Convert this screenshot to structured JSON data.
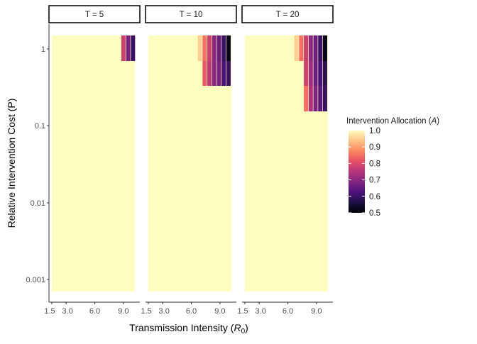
{
  "chart_data": {
    "type": "heatmap",
    "facets": [
      "T = 5",
      "T = 10",
      "T = 20"
    ],
    "xlabel": "Transmission Intensity",
    "xlabel_symbol": "R",
    "xlabel_subscript": "0",
    "ylabel": "Relative Intervention Cost (P)",
    "x_range": [
      1.5,
      10.2
    ],
    "x_ticks": [
      1.5,
      3.0,
      6.0,
      9.0
    ],
    "x_tick_labels": [
      "1.5",
      "3.0",
      "6.0",
      "9.0"
    ],
    "y_scale": "log",
    "y_range": [
      0.001,
      1
    ],
    "y_ticks": [
      1,
      0.1,
      0.01,
      0.001
    ],
    "y_tick_labels": [
      "1",
      "0.1",
      "0.01",
      "0.001"
    ],
    "legend": {
      "title": "Intervention Allocation",
      "title_symbol": "A",
      "position": "right",
      "range": [
        0.5,
        1.0
      ],
      "ticks": [
        1.0,
        0.9,
        0.8,
        0.7,
        0.6,
        0.5
      ],
      "tick_labels": [
        "1.0",
        "0.9",
        "0.8",
        "0.7",
        "0.6",
        "0.5"
      ]
    },
    "default_value": 1.0,
    "cells": [
      [
        {
          "x": 9.0,
          "y": 1,
          "value": 0.78
        },
        {
          "x": 9.5,
          "y": 1,
          "value": 0.68
        },
        {
          "x": 10.0,
          "y": 1,
          "value": 0.6
        }
      ],
      [
        {
          "x": 6.9,
          "y": 1,
          "value": 0.95
        },
        {
          "x": 7.4,
          "y": 1,
          "value": 0.85
        },
        {
          "x": 7.9,
          "y": 1,
          "value": 0.78
        },
        {
          "x": 8.4,
          "y": 1,
          "value": 0.7
        },
        {
          "x": 8.9,
          "y": 1,
          "value": 0.66
        },
        {
          "x": 9.4,
          "y": 1,
          "value": 0.6
        },
        {
          "x": 9.9,
          "y": 1,
          "value": 0.52
        },
        {
          "x": 7.4,
          "y": 0.5,
          "value": 0.82
        },
        {
          "x": 7.9,
          "y": 0.5,
          "value": 0.76
        },
        {
          "x": 8.4,
          "y": 0.5,
          "value": 0.7
        },
        {
          "x": 8.9,
          "y": 0.5,
          "value": 0.68
        },
        {
          "x": 9.4,
          "y": 0.5,
          "value": 0.62
        },
        {
          "x": 9.9,
          "y": 0.5,
          "value": 0.6
        }
      ],
      [
        {
          "x": 6.9,
          "y": 1,
          "value": 0.95
        },
        {
          "x": 7.4,
          "y": 1,
          "value": 0.85
        },
        {
          "x": 7.9,
          "y": 1,
          "value": 0.78
        },
        {
          "x": 8.4,
          "y": 1,
          "value": 0.7
        },
        {
          "x": 8.9,
          "y": 1,
          "value": 0.66
        },
        {
          "x": 9.4,
          "y": 1,
          "value": 0.6
        },
        {
          "x": 9.9,
          "y": 1,
          "value": 0.52
        },
        {
          "x": 7.9,
          "y": 0.5,
          "value": 0.78
        },
        {
          "x": 8.4,
          "y": 0.5,
          "value": 0.72
        },
        {
          "x": 8.9,
          "y": 0.5,
          "value": 0.66
        },
        {
          "x": 9.4,
          "y": 0.5,
          "value": 0.62
        },
        {
          "x": 9.9,
          "y": 0.5,
          "value": 0.58
        },
        {
          "x": 7.9,
          "y": 0.25,
          "value": 0.85
        },
        {
          "x": 8.4,
          "y": 0.25,
          "value": 0.74
        },
        {
          "x": 8.9,
          "y": 0.25,
          "value": 0.68
        },
        {
          "x": 9.4,
          "y": 0.25,
          "value": 0.64
        },
        {
          "x": 9.9,
          "y": 0.25,
          "value": 0.6
        }
      ]
    ]
  },
  "colors": {
    "background": "#ffffff",
    "axis": "#333333",
    "strip_fill": "#ffffff",
    "strip_border": "#000000",
    "palette": "magma",
    "palette_stops": [
      "#000004",
      "#1c1044",
      "#4f127b",
      "#812581",
      "#b5367a",
      "#e55064",
      "#fb8761",
      "#fec287",
      "#fcfdbf"
    ]
  }
}
